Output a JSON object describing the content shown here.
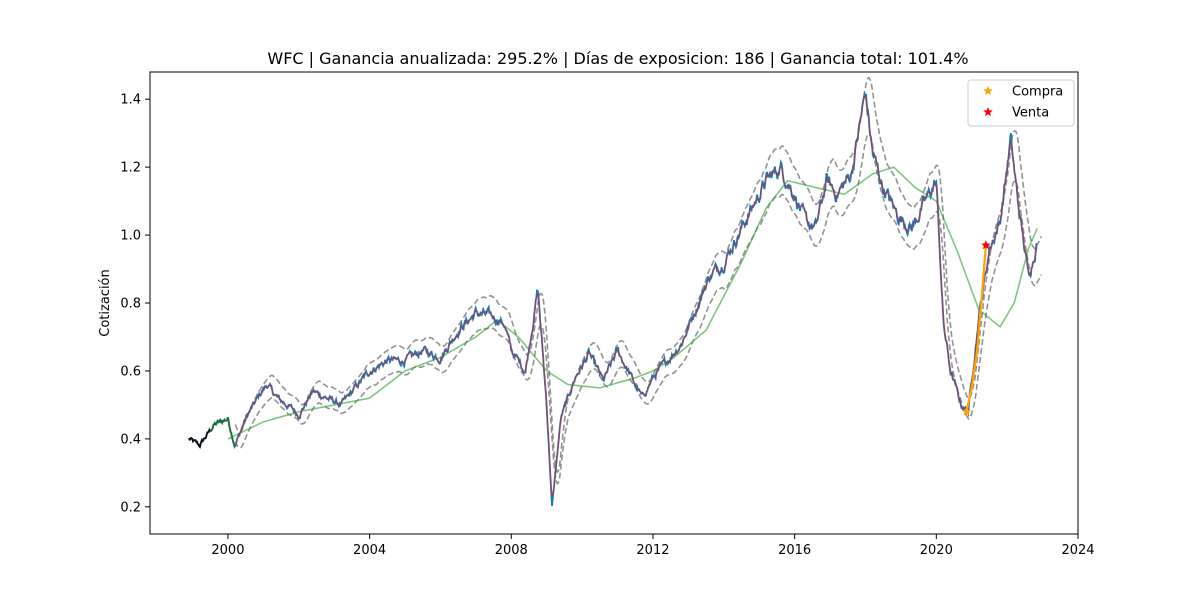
{
  "chart_data": {
    "type": "line",
    "title": "WFC | Ganancia anualizada: 295.2% | Días de exposicion:    186 | Ganancia total: 101.4%",
    "xlabel": "",
    "ylabel": "Cotización",
    "xlim": [
      1997.8,
      2024.0
    ],
    "ylim": [
      0.12,
      1.48
    ],
    "x_ticks": [
      2000,
      2004,
      2008,
      2012,
      2016,
      2020,
      2024
    ],
    "y_ticks": [
      0.2,
      0.4,
      0.6,
      0.8,
      1.0,
      1.2,
      1.4
    ],
    "x_tick_labels": [
      "2000",
      "2004",
      "2008",
      "2012",
      "2016",
      "2020",
      "2024"
    ],
    "y_tick_labels": [
      "0.2",
      "0.4",
      "0.6",
      "0.8",
      "1.0",
      "1.2",
      "1.4"
    ],
    "grid": false,
    "legend_position": "top-right",
    "legend": [
      {
        "label": "Compra",
        "color": "#ffa500",
        "marker": "star"
      },
      {
        "label": "Venta",
        "color": "#ff0000",
        "marker": "star"
      }
    ],
    "price_anchors": [
      [
        1998.9,
        0.4
      ],
      [
        1999.2,
        0.38
      ],
      [
        1999.6,
        0.44
      ],
      [
        2000.0,
        0.46
      ],
      [
        2000.2,
        0.38
      ],
      [
        2000.5,
        0.46
      ],
      [
        2000.9,
        0.53
      ],
      [
        2001.1,
        0.56
      ],
      [
        2001.4,
        0.52
      ],
      [
        2001.8,
        0.49
      ],
      [
        2002.0,
        0.47
      ],
      [
        2002.4,
        0.54
      ],
      [
        2002.8,
        0.52
      ],
      [
        2003.2,
        0.5
      ],
      [
        2003.6,
        0.55
      ],
      [
        2004.0,
        0.6
      ],
      [
        2004.5,
        0.63
      ],
      [
        2005.0,
        0.63
      ],
      [
        2005.5,
        0.66
      ],
      [
        2006.0,
        0.64
      ],
      [
        2006.5,
        0.72
      ],
      [
        2007.0,
        0.77
      ],
      [
        2007.5,
        0.76
      ],
      [
        2007.8,
        0.74
      ],
      [
        2008.0,
        0.66
      ],
      [
        2008.4,
        0.6
      ],
      [
        2008.75,
        0.84
      ],
      [
        2009.0,
        0.5
      ],
      [
        2009.15,
        0.2
      ],
      [
        2009.4,
        0.46
      ],
      [
        2009.8,
        0.58
      ],
      [
        2010.2,
        0.65
      ],
      [
        2010.6,
        0.57
      ],
      [
        2011.0,
        0.66
      ],
      [
        2011.4,
        0.58
      ],
      [
        2011.7,
        0.52
      ],
      [
        2012.0,
        0.58
      ],
      [
        2012.4,
        0.63
      ],
      [
        2012.8,
        0.68
      ],
      [
        2013.2,
        0.78
      ],
      [
        2013.6,
        0.88
      ],
      [
        2014.0,
        0.92
      ],
      [
        2014.4,
        1.0
      ],
      [
        2014.8,
        1.08
      ],
      [
        2015.2,
        1.16
      ],
      [
        2015.6,
        1.2
      ],
      [
        2016.0,
        1.12
      ],
      [
        2016.3,
        1.04
      ],
      [
        2016.6,
        1.02
      ],
      [
        2016.9,
        1.16
      ],
      [
        2017.2,
        1.12
      ],
      [
        2017.6,
        1.18
      ],
      [
        2018.0,
        1.42
      ],
      [
        2018.2,
        1.24
      ],
      [
        2018.5,
        1.14
      ],
      [
        2018.9,
        1.06
      ],
      [
        2019.3,
        1.02
      ],
      [
        2019.7,
        1.1
      ],
      [
        2020.0,
        1.16
      ],
      [
        2020.2,
        0.74
      ],
      [
        2020.4,
        0.6
      ],
      [
        2020.7,
        0.5
      ],
      [
        2020.9,
        0.48
      ],
      [
        2021.2,
        0.76
      ],
      [
        2021.5,
        0.96
      ],
      [
        2021.8,
        1.04
      ],
      [
        2022.1,
        1.28
      ],
      [
        2022.3,
        1.1
      ],
      [
        2022.6,
        0.88
      ],
      [
        2022.8,
        0.96
      ],
      [
        2022.85,
        0.99
      ]
    ],
    "trend_anchors": [
      [
        2000.0,
        0.4
      ],
      [
        2001.0,
        0.45
      ],
      [
        2002.0,
        0.48
      ],
      [
        2003.0,
        0.5
      ],
      [
        2004.0,
        0.52
      ],
      [
        2005.0,
        0.6
      ],
      [
        2006.0,
        0.64
      ],
      [
        2007.0,
        0.7
      ],
      [
        2007.6,
        0.75
      ],
      [
        2008.2,
        0.7
      ],
      [
        2009.0,
        0.6
      ],
      [
        2009.6,
        0.56
      ],
      [
        2010.5,
        0.55
      ],
      [
        2011.5,
        0.58
      ],
      [
        2012.0,
        0.6
      ],
      [
        2012.6,
        0.64
      ],
      [
        2013.5,
        0.72
      ],
      [
        2014.5,
        0.92
      ],
      [
        2015.2,
        1.08
      ],
      [
        2015.8,
        1.16
      ],
      [
        2016.6,
        1.14
      ],
      [
        2017.4,
        1.12
      ],
      [
        2018.2,
        1.18
      ],
      [
        2018.8,
        1.2
      ],
      [
        2019.4,
        1.14
      ],
      [
        2020.0,
        1.1
      ],
      [
        2020.6,
        0.95
      ],
      [
        2021.2,
        0.78
      ],
      [
        2021.8,
        0.73
      ],
      [
        2022.2,
        0.8
      ],
      [
        2022.6,
        0.96
      ],
      [
        2022.85,
        1.02
      ]
    ],
    "buy_signal": {
      "x": 2020.85,
      "y": 0.48
    },
    "sell_signal": {
      "x": 2021.4,
      "y": 0.97
    },
    "hold_segment": [
      [
        2020.85,
        0.48
      ],
      [
        2021.0,
        0.55
      ],
      [
        2021.15,
        0.66
      ],
      [
        2021.3,
        0.84
      ],
      [
        2021.4,
        0.97
      ]
    ],
    "series_colors": {
      "price": "#1f77b4",
      "fast_ma": "#d62728",
      "trend": "#2ca02c",
      "bands": "#808080",
      "early_segment": "#1a6f3a",
      "early_black": "#111111",
      "hold": "#ffa500"
    }
  }
}
